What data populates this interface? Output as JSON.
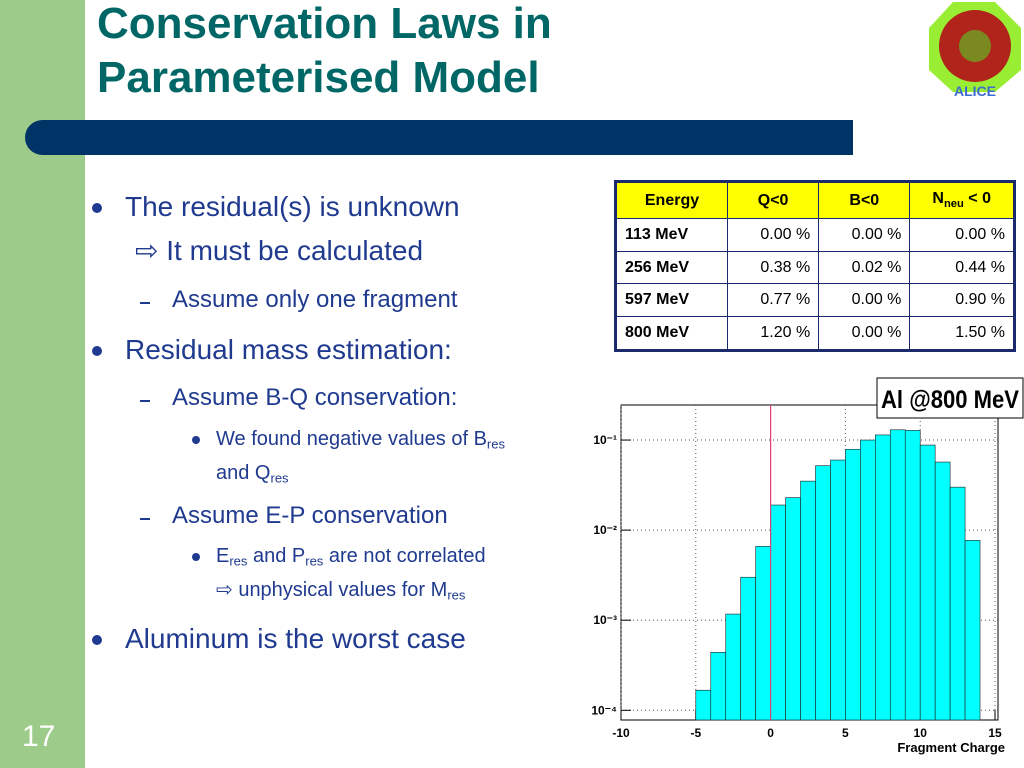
{
  "slide": {
    "title": [
      "Conservation Laws in",
      "Parameterised Model"
    ],
    "number": "17",
    "logo": "ALICE"
  },
  "body": [
    [
      "The residual(s) is unknown"
    ],
    [
      "⇨ It must be calculated"
    ],
    [
      "Assume only one fragment"
    ],
    [
      "Residual mass estimation:"
    ],
    [
      "Assume B-Q conservation:"
    ],
    [
      "We found negative values of B",
      "res"
    ],
    [
      "and Q",
      "res"
    ],
    [
      "Assume E-P conservation"
    ],
    [
      "E",
      "res",
      " and P",
      "res",
      " are not correlated"
    ],
    [
      "⇨ unphysical values for M",
      "res"
    ],
    [
      "Aluminum is the worst case"
    ]
  ],
  "table": {
    "header": [
      [
        "Energy"
      ],
      [
        "Q<0"
      ],
      [
        "B<0"
      ],
      [
        "N",
        "neu",
        " < 0"
      ]
    ],
    "rows": [
      [
        "113 MeV",
        "0.00 %",
        "0.00 %",
        "0.00 %"
      ],
      [
        "256 MeV",
        "0.38 %",
        "0.02 %",
        "0.44 %"
      ],
      [
        "597 MeV",
        "0.77 %",
        "0.00 %",
        "0.90 %"
      ],
      [
        "800 MeV",
        "1.20 %",
        "0.00 %",
        "1.50 %"
      ]
    ]
  },
  "chart_data": {
    "type": "histogram",
    "title": "Al @800 MeV",
    "x_label": "Fragment Charge",
    "bins": [
      -5,
      -4,
      -3,
      -2,
      -1,
      0,
      1,
      2,
      3,
      4,
      5,
      6,
      7,
      8,
      9,
      10,
      11,
      12,
      13,
      14
    ],
    "values": [
      0.000167,
      0.00044,
      0.00117,
      0.003,
      0.0066,
      0.019,
      0.023,
      0.035,
      0.052,
      0.06,
      0.079,
      0.1,
      0.114,
      0.13,
      0.128,
      0.088,
      0.057,
      0.03,
      0.0077
    ],
    "color": "#00ffff",
    "xlim": [
      -10,
      15
    ],
    "xticks": [
      -10,
      -5,
      0,
      5,
      10,
      15
    ],
    "ylim": [
      7.8e-05,
      0.245
    ],
    "yticks": [
      {
        "value": 0.0001,
        "label": "10⁻⁴"
      },
      {
        "value": 0.001,
        "label": "10⁻³"
      },
      {
        "value": 0.01,
        "label": "10⁻²"
      },
      {
        "value": 0.1,
        "label": "10⁻¹"
      }
    ],
    "log_y": true,
    "grid": true,
    "reference_line": {
      "x": 0,
      "color": "#e0407a"
    }
  }
}
